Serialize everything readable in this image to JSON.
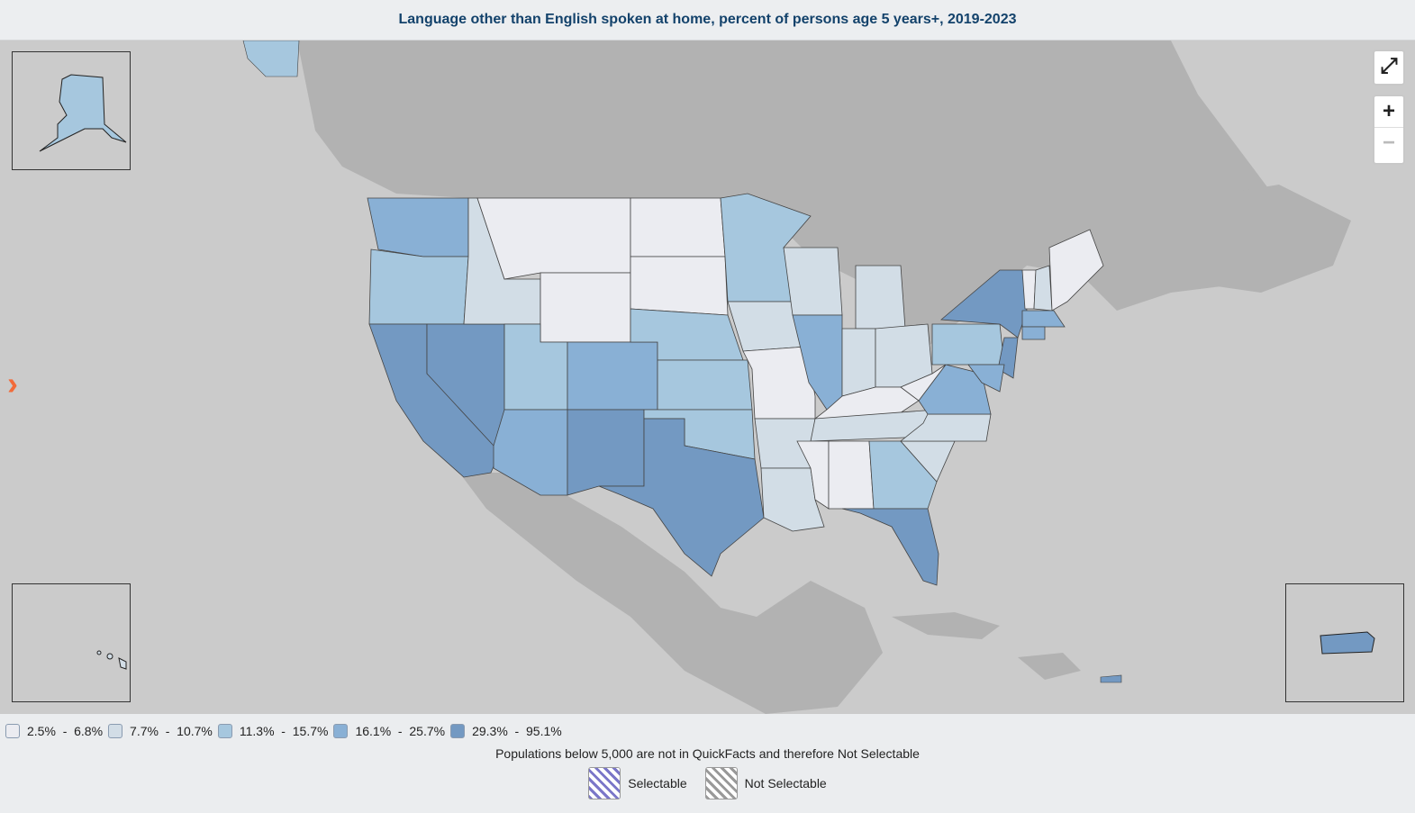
{
  "title": "Language other than English spoken at home, percent of persons age 5 years+, 2019-2023",
  "colors": {
    "c1": "#ebecf1",
    "c2": "#d2dde6",
    "c3": "#a6c7de",
    "c4": "#89b0d5",
    "c5": "#7399c2",
    "water": "#cbcbcb",
    "land": "#b2b2b2"
  },
  "controls": {
    "fullscreen_icon": "expand-arrows-icon",
    "zoom_in": "+",
    "zoom_out": "−"
  },
  "legend": {
    "classes": [
      {
        "label": "2.5%  -  6.8%",
        "color": "#ebecf1"
      },
      {
        "label": "7.7%  -  10.7%",
        "color": "#d2dde6"
      },
      {
        "label": "11.3%  -  15.7%",
        "color": "#a6c7de"
      },
      {
        "label": "16.1%  -  25.7%",
        "color": "#89b0d5"
      },
      {
        "label": "29.3%  -  95.1%",
        "color": "#7399c2"
      }
    ],
    "note": "Populations below 5,000 are not in QuickFacts and therefore Not Selectable",
    "selectable": "Selectable",
    "not_selectable": "Not Selectable"
  }
}
